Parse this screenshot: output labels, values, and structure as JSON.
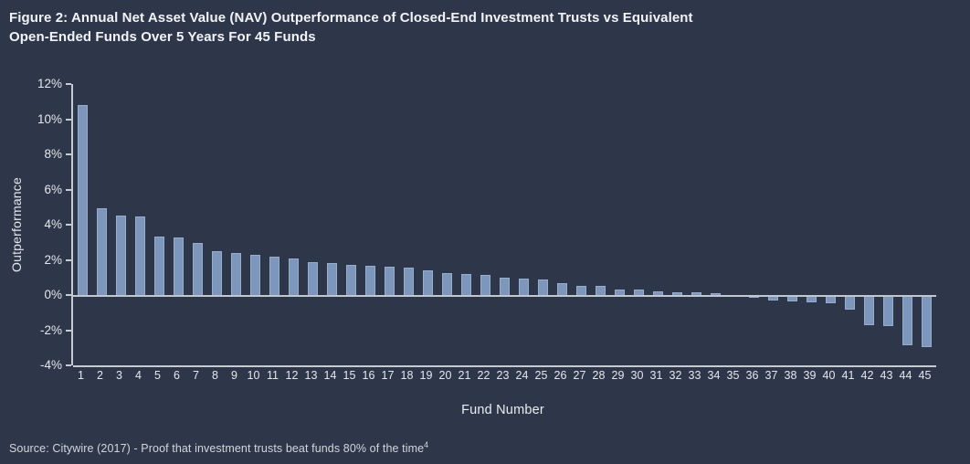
{
  "header": {
    "line1": "Figure 2: Annual Net Asset Value (NAV) Outperformance of Closed-End Investment Trusts vs Equivalent",
    "line2": "Open-Ended Funds Over 5 Years For 45 Funds"
  },
  "source": {
    "label": "Source: Citywire (2017) - Proof that investment trusts beat funds 80% of the time",
    "superscript": "4"
  },
  "colors": {
    "background": "#2e3749",
    "bar": "#7c96bc",
    "axis_line": "#c6cad1",
    "title_text": "#f1f3f7",
    "axis_text": "#e4e7ec",
    "source_text": "#d2d6dd"
  },
  "chart_data": {
    "type": "bar",
    "title": "Figure 2: Annual Net Asset Value (NAV) Outperformance of Closed-End Investment Trusts vs Equivalent Open-Ended Funds Over 5 Years For 45 Funds",
    "xlabel": "Fund Number",
    "ylabel": "Outperformance",
    "ylim": [
      -4,
      12
    ],
    "yticks": [
      12,
      10,
      8,
      6,
      4,
      2,
      0,
      -2,
      -4
    ],
    "ytick_suffix": "%",
    "grid": false,
    "legend": false,
    "categories": [
      1,
      2,
      3,
      4,
      5,
      6,
      7,
      8,
      9,
      10,
      11,
      12,
      13,
      14,
      15,
      16,
      17,
      18,
      19,
      20,
      21,
      22,
      23,
      24,
      25,
      26,
      27,
      28,
      29,
      30,
      31,
      32,
      33,
      34,
      35,
      36,
      37,
      38,
      39,
      40,
      41,
      42,
      43,
      44,
      45
    ],
    "values": [
      10.9,
      5.05,
      4.6,
      4.55,
      3.45,
      3.4,
      3.05,
      2.6,
      2.5,
      2.4,
      2.3,
      2.2,
      2.0,
      1.9,
      1.8,
      1.75,
      1.7,
      1.65,
      1.5,
      1.35,
      1.3,
      1.25,
      1.1,
      1.05,
      1.0,
      0.8,
      0.6,
      0.6,
      0.4,
      0.4,
      0.3,
      0.25,
      0.25,
      0.2,
      -0.1,
      -0.15,
      -0.3,
      -0.35,
      -0.4,
      -0.45,
      -0.85,
      -1.7,
      -1.75,
      -2.85,
      -2.95
    ]
  }
}
